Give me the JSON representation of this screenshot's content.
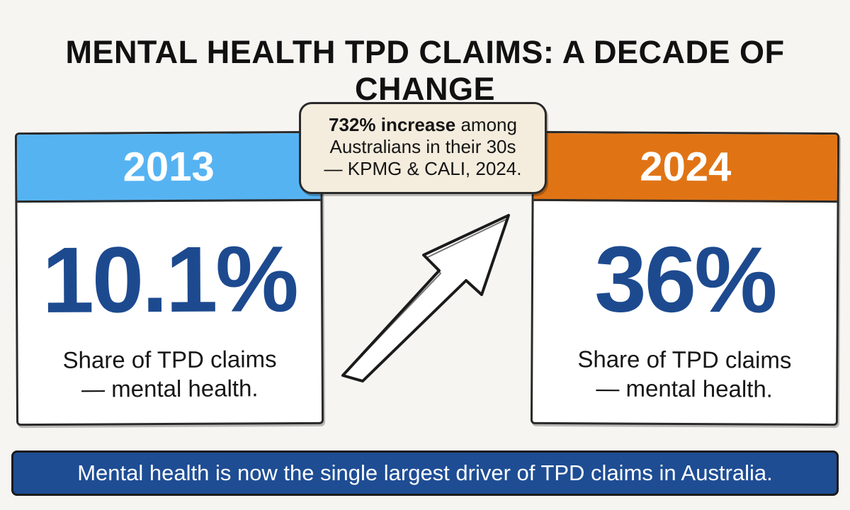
{
  "title": "MENTAL HEALTH TPD CLAIMS: A DECADE OF CHANGE",
  "left_card": {
    "year": "2013",
    "value": "10.1%",
    "caption_line1": "Share of TPD claims",
    "caption_line2": "— mental health.",
    "header_color": "#56b3f2"
  },
  "right_card": {
    "year": "2024",
    "value": "36%",
    "caption_line1": "Share of TPD claims",
    "caption_line2": "— mental health.",
    "header_color": "#e07415"
  },
  "callout": {
    "bold": "732% increase",
    "rest_line1": " among",
    "line2": "Australians in their 30s",
    "line3": "— KPMG & CALI, 2024."
  },
  "banner": {
    "text": "Mental health is now the single largest driver of TPD claims in Australia."
  },
  "colors": {
    "value_text": "#1d4a8f",
    "banner_bg": "#1e4d94",
    "callout_bg": "#f4ecdd"
  },
  "icons": {
    "arrow": "up-right-arrow-icon"
  }
}
